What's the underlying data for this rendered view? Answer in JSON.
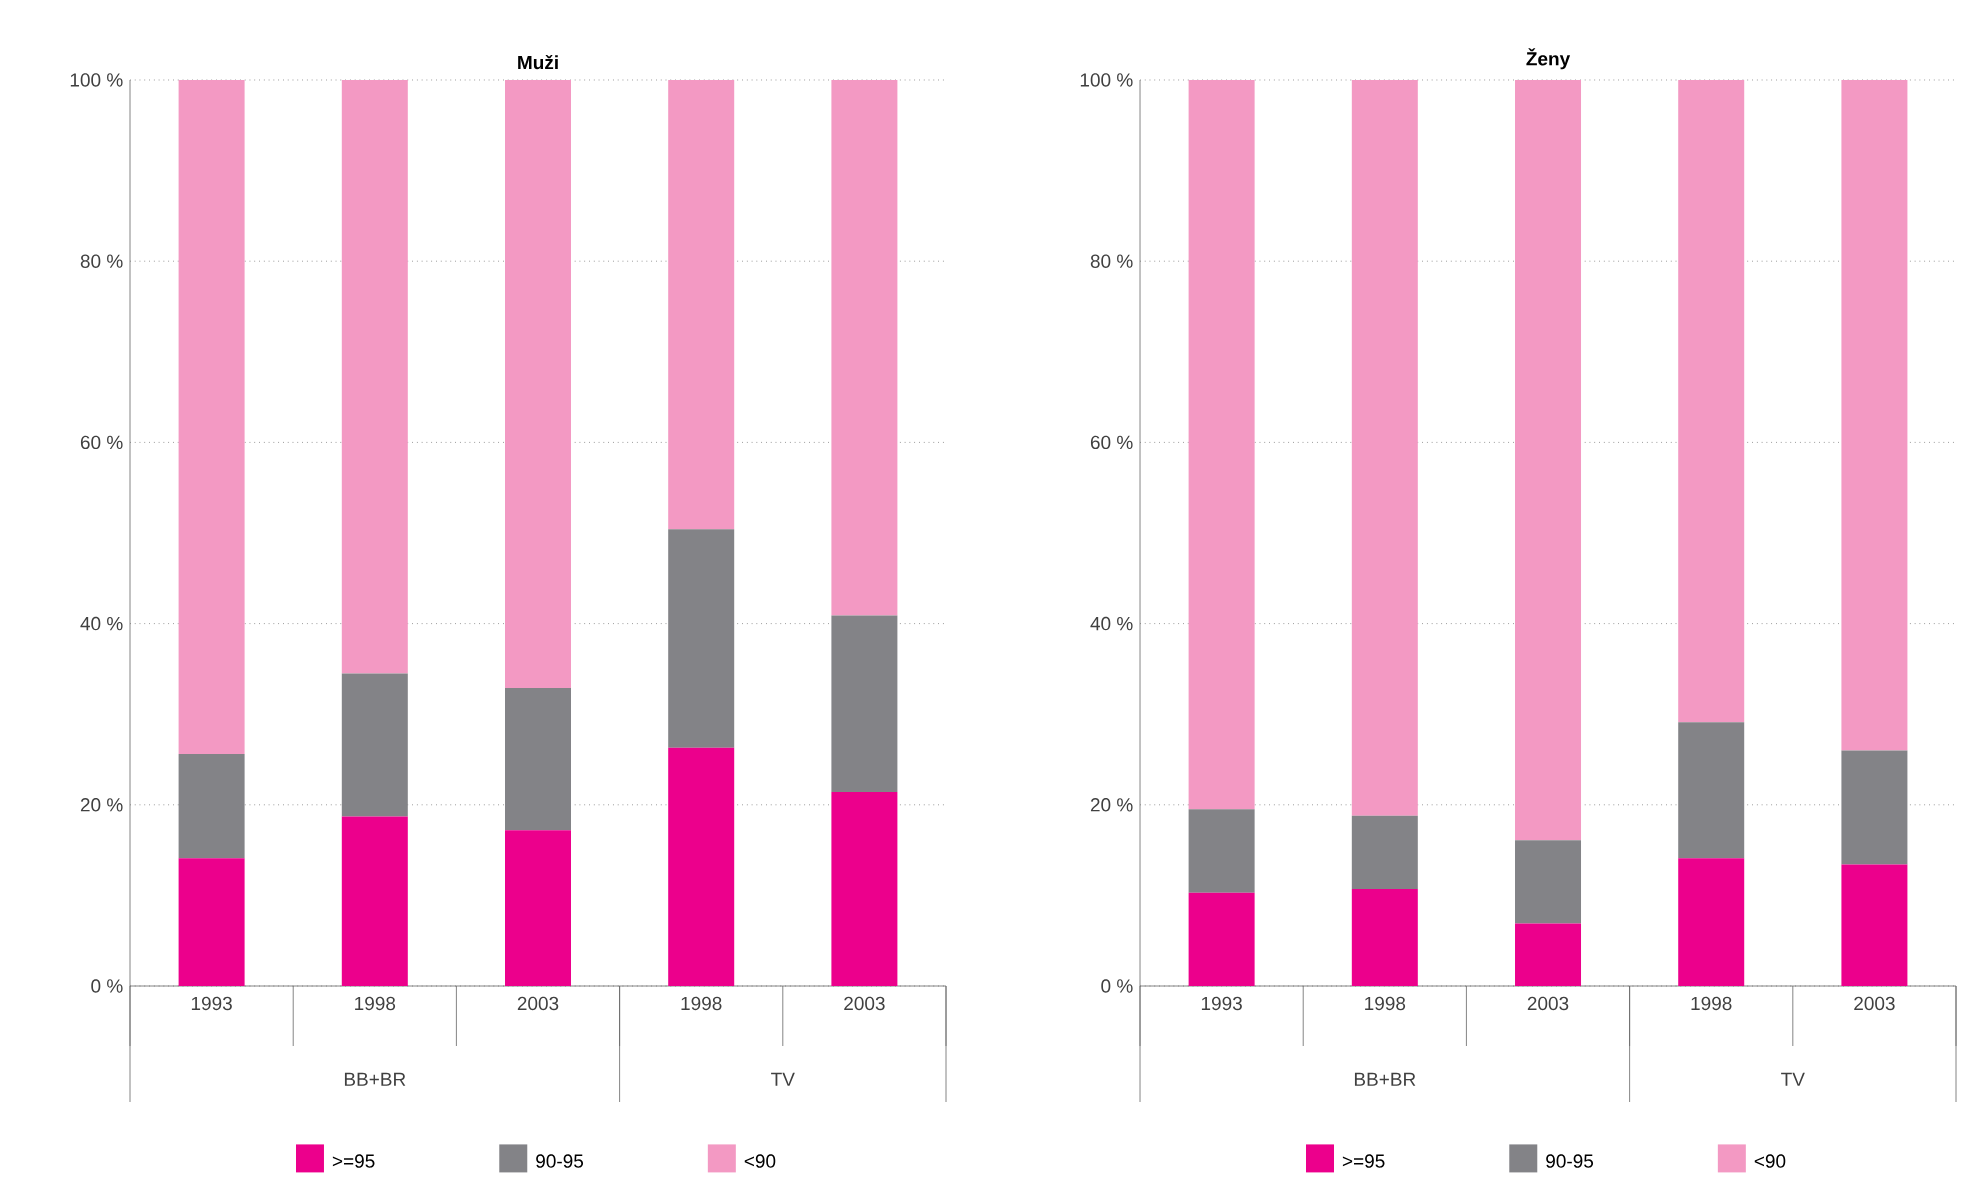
{
  "chart_data": [
    {
      "type": "bar",
      "title": "Muži",
      "stacked": true,
      "categories": [
        "1993",
        "1998",
        "2003",
        "1998",
        "2003"
      ],
      "series": [
        {
          "name": ">=95",
          "color": "#ec008c",
          "values": [
            14.1,
            18.7,
            17.2,
            26.3,
            21.4
          ]
        },
        {
          "name": "90-95",
          "color": "#838387",
          "values": [
            11.5,
            15.8,
            15.7,
            24.1,
            19.5
          ]
        },
        {
          "name": "<90",
          "color": "#f399c3",
          "values": [
            74.4,
            65.5,
            67.1,
            49.6,
            59.1
          ]
        }
      ],
      "ylim": [
        0,
        100
      ],
      "yticks": [
        {
          "value": 0,
          "label": "0 %"
        },
        {
          "value": 20,
          "label": "20 %"
        },
        {
          "value": 40,
          "label": "40 %"
        },
        {
          "value": 60,
          "label": "60 %"
        },
        {
          "value": 80,
          "label": "80 %"
        },
        {
          "value": 100,
          "label": "100 %"
        }
      ],
      "grid": "y",
      "legend": "bottom",
      "annotations": [
        "BB+BR",
        "TV"
      ]
    },
    {
      "type": "bar",
      "title": "Ženy",
      "stacked": true,
      "categories": [
        "1993",
        "1998",
        "2003",
        "1998",
        "2003"
      ],
      "series": [
        {
          "name": ">=95",
          "color": "#ec008c",
          "values": [
            10.3,
            10.7,
            6.9,
            14.1,
            13.4
          ]
        },
        {
          "name": "90-95",
          "color": "#838387",
          "values": [
            9.2,
            8.1,
            9.2,
            15.0,
            12.6
          ]
        },
        {
          "name": "<90",
          "color": "#f399c3",
          "values": [
            80.5,
            81.2,
            83.9,
            70.9,
            74.0
          ]
        }
      ],
      "ylim": [
        0,
        100
      ],
      "yticks": [
        {
          "value": 0,
          "label": "0 %"
        },
        {
          "value": 20,
          "label": "20 %"
        },
        {
          "value": 40,
          "label": "40 %"
        },
        {
          "value": 60,
          "label": "60 %"
        },
        {
          "value": 80,
          "label": "80 %"
        },
        {
          "value": 100,
          "label": "100 %"
        }
      ],
      "grid": "y",
      "legend": "bottom",
      "annotations": [
        "BB+BR",
        "TV"
      ]
    }
  ]
}
